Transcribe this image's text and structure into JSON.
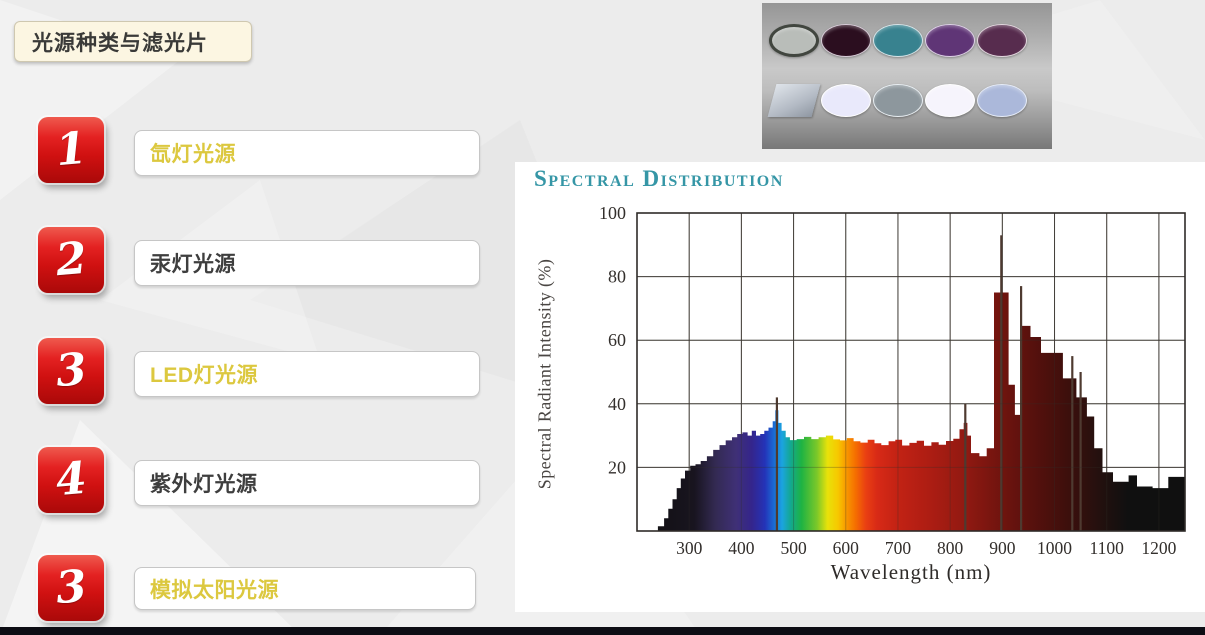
{
  "slide": {
    "title": "光源种类与滤光片",
    "items": [
      {
        "num": "1",
        "label": "氙灯光源",
        "emphasis": true
      },
      {
        "num": "2",
        "label": "汞灯光源",
        "emphasis": false
      },
      {
        "num": "3",
        "label": "LED灯光源",
        "emphasis": true
      },
      {
        "num": "4",
        "label": "紫外灯光源",
        "emphasis": false
      },
      {
        "num": "3",
        "label": "模拟太阳光源",
        "emphasis": true
      }
    ],
    "colors": {
      "accent_yellow": "#dcc83f",
      "text_dark": "#3e3e3e",
      "badge_red": "#d01111",
      "footer": "#0d0d14",
      "chart_title_teal": "#3596a6"
    }
  },
  "filters_photo": {
    "row1": [
      {
        "shape": "disc",
        "fill": "#b9bdb9",
        "ring": "#41463f",
        "name": "silver-nd-filter"
      },
      {
        "shape": "disc",
        "fill": "#2b0e1f",
        "ring": "#d8ccd8",
        "name": "dark-magenta-filter"
      },
      {
        "shape": "disc",
        "fill": "#38828f",
        "ring": "#d6e4e8",
        "name": "teal-filter"
      },
      {
        "shape": "disc",
        "fill": "#5f3576",
        "ring": "#ddd0e6",
        "name": "purple-filter"
      },
      {
        "shape": "disc",
        "fill": "#572c4e",
        "ring": "#e2d6de",
        "name": "plum-filter"
      }
    ],
    "row2": [
      {
        "shape": "plate",
        "fill": "#b3bac4",
        "ring": "#dfe4ea",
        "name": "glass-plate"
      },
      {
        "shape": "disc",
        "fill": "#e9e9fb",
        "ring": "#ffffff",
        "name": "pale-lavender-filter"
      },
      {
        "shape": "disc",
        "fill": "#8d979d",
        "ring": "#e8eef2",
        "name": "gray-filter"
      },
      {
        "shape": "disc",
        "fill": "#f6f4fc",
        "ring": "#ffffff",
        "name": "white-filter"
      },
      {
        "shape": "disc",
        "fill": "#abb8da",
        "ring": "#e6ecf8",
        "name": "periwinkle-filter"
      }
    ]
  },
  "chart_data": {
    "type": "bar",
    "title": "Spectral Distribution",
    "xlabel": "Wavelength (nm)",
    "ylabel": "Spectral Radiant Intensity (%)",
    "xlim": [
      200,
      1250
    ],
    "ylim": [
      0,
      100
    ],
    "x_ticks": [
      300,
      400,
      500,
      600,
      700,
      800,
      900,
      1000,
      1100,
      1200
    ],
    "y_ticks": [
      20,
      40,
      60,
      80,
      100
    ],
    "grid": true,
    "legend": "none",
    "series_steps": [
      [
        240,
        252,
        1.5
      ],
      [
        252,
        260,
        4
      ],
      [
        260,
        268,
        7
      ],
      [
        268,
        276,
        10
      ],
      [
        276,
        284,
        13.5
      ],
      [
        284,
        292,
        16.5
      ],
      [
        292,
        302,
        19
      ],
      [
        302,
        312,
        20.5
      ],
      [
        312,
        322,
        21
      ],
      [
        322,
        334,
        22
      ],
      [
        334,
        346,
        23.5
      ],
      [
        346,
        358,
        25.5
      ],
      [
        358,
        370,
        27
      ],
      [
        370,
        382,
        28.5
      ],
      [
        382,
        392,
        29.5
      ],
      [
        392,
        402,
        30.5
      ],
      [
        402,
        412,
        31
      ],
      [
        412,
        420,
        30
      ],
      [
        420,
        428,
        31.5
      ],
      [
        428,
        436,
        30
      ],
      [
        436,
        444,
        30.5
      ],
      [
        444,
        452,
        31.5
      ],
      [
        452,
        460,
        32.5
      ],
      [
        460,
        465,
        34.5
      ],
      [
        465,
        471,
        38
      ],
      [
        471,
        477,
        34
      ],
      [
        477,
        485,
        31.5
      ],
      [
        485,
        493,
        29.5
      ],
      [
        493,
        506,
        28.6
      ],
      [
        506,
        520,
        28.9
      ],
      [
        520,
        534,
        29.6
      ],
      [
        534,
        548,
        28.9
      ],
      [
        548,
        562,
        29.5
      ],
      [
        562,
        576,
        30
      ],
      [
        576,
        589,
        28.8
      ],
      [
        589,
        602,
        28.5
      ],
      [
        602,
        615,
        29.2
      ],
      [
        615,
        628,
        28.2
      ],
      [
        628,
        642,
        27.8
      ],
      [
        642,
        655,
        28.7
      ],
      [
        655,
        668,
        27.6
      ],
      [
        668,
        682,
        27
      ],
      [
        682,
        695,
        28.2
      ],
      [
        695,
        708,
        28.7
      ],
      [
        708,
        722,
        26.9
      ],
      [
        722,
        736,
        27.7
      ],
      [
        736,
        750,
        28.4
      ],
      [
        750,
        764,
        26.8
      ],
      [
        764,
        778,
        27.9
      ],
      [
        778,
        792,
        27.1
      ],
      [
        792,
        806,
        28.3
      ],
      [
        806,
        818,
        29
      ],
      [
        818,
        826,
        32
      ],
      [
        826,
        833,
        34
      ],
      [
        833,
        840,
        30
      ],
      [
        840,
        856,
        24.5
      ],
      [
        856,
        870,
        23.5
      ],
      [
        870,
        884,
        26
      ],
      [
        884,
        912,
        75
      ],
      [
        912,
        924,
        46
      ],
      [
        924,
        934,
        36.5
      ],
      [
        934,
        954,
        64.5
      ],
      [
        954,
        974,
        61
      ],
      [
        974,
        1016,
        56
      ],
      [
        1016,
        1042,
        48
      ],
      [
        1042,
        1062,
        42
      ],
      [
        1062,
        1076,
        36
      ],
      [
        1076,
        1092,
        26
      ],
      [
        1092,
        1112,
        18.5
      ],
      [
        1112,
        1142,
        15.5
      ],
      [
        1142,
        1158,
        17.5
      ],
      [
        1158,
        1188,
        14
      ],
      [
        1188,
        1218,
        13.5
      ],
      [
        1218,
        1250,
        17
      ]
    ],
    "line_spikes": [
      [
        468,
        42
      ],
      [
        829,
        40
      ],
      [
        898,
        93
      ],
      [
        936,
        77
      ],
      [
        1034,
        55
      ],
      [
        1050,
        50
      ]
    ],
    "spectrum_gradient_stops": [
      [
        200,
        "#101010"
      ],
      [
        310,
        "#18141f"
      ],
      [
        350,
        "#332a52"
      ],
      [
        390,
        "#3f3076"
      ],
      [
        420,
        "#34258c"
      ],
      [
        445,
        "#2433b8"
      ],
      [
        462,
        "#1a6ad4"
      ],
      [
        478,
        "#1ba4e0"
      ],
      [
        495,
        "#13a88e"
      ],
      [
        515,
        "#1eb343"
      ],
      [
        545,
        "#7cc829"
      ],
      [
        565,
        "#e8e20a"
      ],
      [
        585,
        "#f7c800"
      ],
      [
        600,
        "#f89b00"
      ],
      [
        618,
        "#f57000"
      ],
      [
        638,
        "#ea4012"
      ],
      [
        660,
        "#d82a16"
      ],
      [
        700,
        "#c22214"
      ],
      [
        760,
        "#ad1d13"
      ],
      [
        820,
        "#951a12"
      ],
      [
        880,
        "#78150f"
      ],
      [
        950,
        "#5a110d"
      ],
      [
        1020,
        "#3f0f0c"
      ],
      [
        1090,
        "#22100e"
      ],
      [
        1140,
        "#101010"
      ],
      [
        1250,
        "#101010"
      ]
    ]
  }
}
